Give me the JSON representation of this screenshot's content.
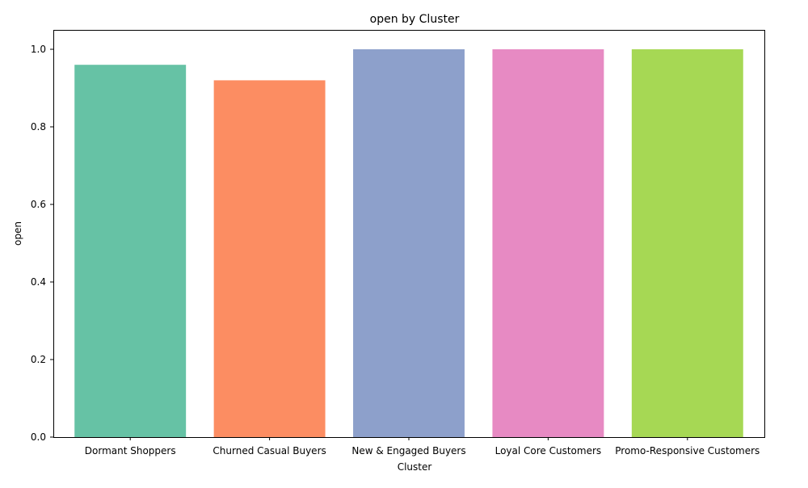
{
  "chart_data": {
    "type": "bar",
    "title": "open by Cluster",
    "xlabel": "Cluster",
    "ylabel": "open",
    "categories": [
      "Dormant Shoppers",
      "Churned Casual Buyers",
      "New & Engaged Buyers",
      "Loyal Core Customers",
      "Promo-Responsive Customers"
    ],
    "values": [
      0.96,
      0.92,
      1.0,
      1.0,
      1.0
    ],
    "colors": [
      "#66c2a5",
      "#fc8d62",
      "#8da0cb",
      "#e78ac3",
      "#a6d854"
    ],
    "ylim": [
      0,
      1.05
    ],
    "yticks": [
      0.0,
      0.2,
      0.4,
      0.6,
      0.8,
      1.0
    ],
    "ytick_labels": [
      "0.0",
      "0.2",
      "0.4",
      "0.6",
      "0.8",
      "1.0"
    ],
    "grid": false,
    "legend": "none"
  }
}
